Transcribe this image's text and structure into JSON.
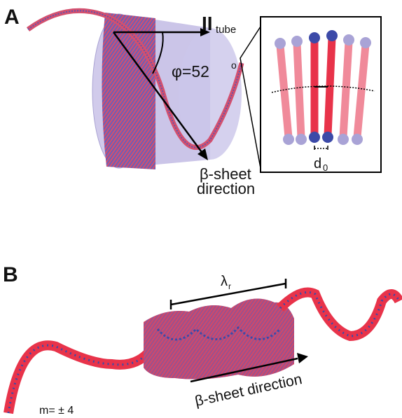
{
  "panel_a": {
    "letter": "A",
    "axis_symbol": "II",
    "axis_sub": "tube",
    "angle_label": "φ=52",
    "angle_unit": "o",
    "direction_line1": "β-sheet",
    "direction_line2": "direction",
    "spacing_symbol": "d",
    "spacing_sub": "0"
  },
  "panel_b": {
    "letter": "B",
    "wavelength_symbol": "λ",
    "wavelength_sub": "r",
    "direction_label": "β-sheet direction",
    "mode_label": "m= ± 4"
  },
  "colors": {
    "strand_red": "#e8334a",
    "strand_pink": "#f08a9a",
    "bead_blue": "#3c4aa8",
    "bead_lavender": "#a9a3d6",
    "tube_fill": "#b9b2e0"
  }
}
